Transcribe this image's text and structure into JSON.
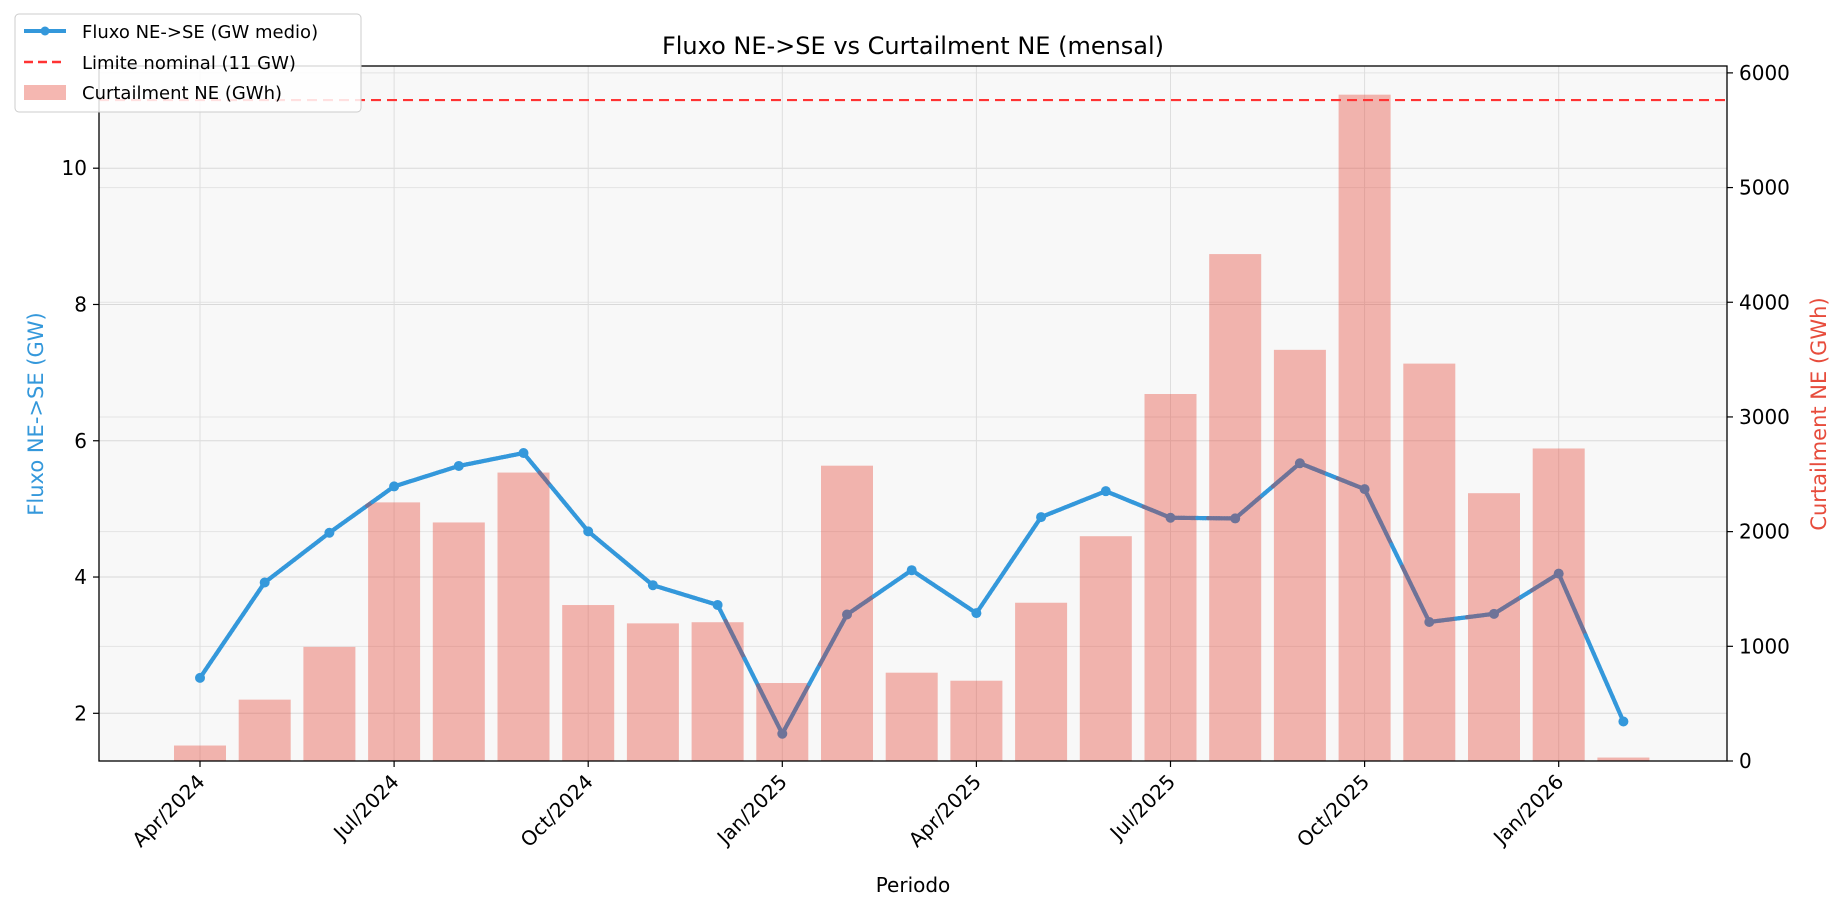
{
  "chart_data": {
    "type": "bar+line",
    "title": "Fluxo NE->SE vs Curtailment NE (mensal)",
    "xlabel": "Periodo",
    "ylabel_left": "Fluxo NE->SE (GW)",
    "ylabel_right": "Curtailment NE (GWh)",
    "left_axis": {
      "ylim": [
        1.3,
        11.5
      ],
      "ticks": [
        2,
        4,
        6,
        8,
        10
      ],
      "tick_labels": [
        "2",
        "4",
        "6",
        "8",
        "10"
      ]
    },
    "right_axis": {
      "ylim": [
        0,
        6060
      ],
      "ticks": [
        0,
        1000,
        2000,
        3000,
        4000,
        5000,
        6000
      ],
      "tick_labels": [
        "0",
        "1000",
        "2000",
        "3000",
        "4000",
        "5000",
        "6000"
      ]
    },
    "x_tick_labels": [
      "Apr/2024",
      "Jul/2024",
      "Oct/2024",
      "Jan/2025",
      "Apr/2025",
      "Jul/2025",
      "Oct/2025",
      "Jan/2026"
    ],
    "x_tick_month_index": [
      0,
      3,
      6,
      9,
      12,
      15,
      18,
      21
    ],
    "months": [
      "2024-04",
      "2024-05",
      "2024-06",
      "2024-07",
      "2024-08",
      "2024-09",
      "2024-10",
      "2024-11",
      "2024-12",
      "2025-01",
      "2025-02",
      "2025-03",
      "2025-04",
      "2025-05",
      "2025-06",
      "2025-07",
      "2025-08",
      "2025-09",
      "2025-10",
      "2025-11",
      "2025-12",
      "2026-01",
      "2026-02"
    ],
    "grid": true,
    "legend_position": "top-left",
    "series": [
      {
        "name": "Fluxo NE->SE (GW medio)",
        "kind": "line",
        "axis": "left",
        "color": "#3498db",
        "values": [
          2.52,
          3.92,
          4.65,
          5.33,
          5.63,
          5.82,
          4.67,
          3.88,
          3.59,
          1.7,
          3.45,
          4.1,
          3.47,
          4.88,
          5.26,
          4.87,
          4.86,
          5.67,
          5.29,
          3.34,
          3.46,
          4.05,
          1.88
        ]
      },
      {
        "name": "Curtailment NE (GWh)",
        "kind": "bar",
        "axis": "right",
        "color": "#e74c3c",
        "values": [
          135,
          535,
          995,
          2255,
          2080,
          2515,
          1360,
          1200,
          1210,
          680,
          2575,
          770,
          700,
          1380,
          1960,
          3200,
          4420,
          3585,
          5810,
          3465,
          2335,
          2725,
          30
        ]
      }
    ],
    "reference_line": {
      "name": "Limite nominal (11 GW)",
      "value": 11,
      "axis": "left",
      "color": "#ff3333",
      "style": "dashed"
    },
    "colors": {
      "flux": "#3498db",
      "flux_overlap": "#6f7398",
      "bars": "#e74c3c",
      "limit": "#ff3333",
      "plot_bg": "#f8f8f8",
      "left_label": "#3498db",
      "right_label": "#e74c3c"
    }
  }
}
